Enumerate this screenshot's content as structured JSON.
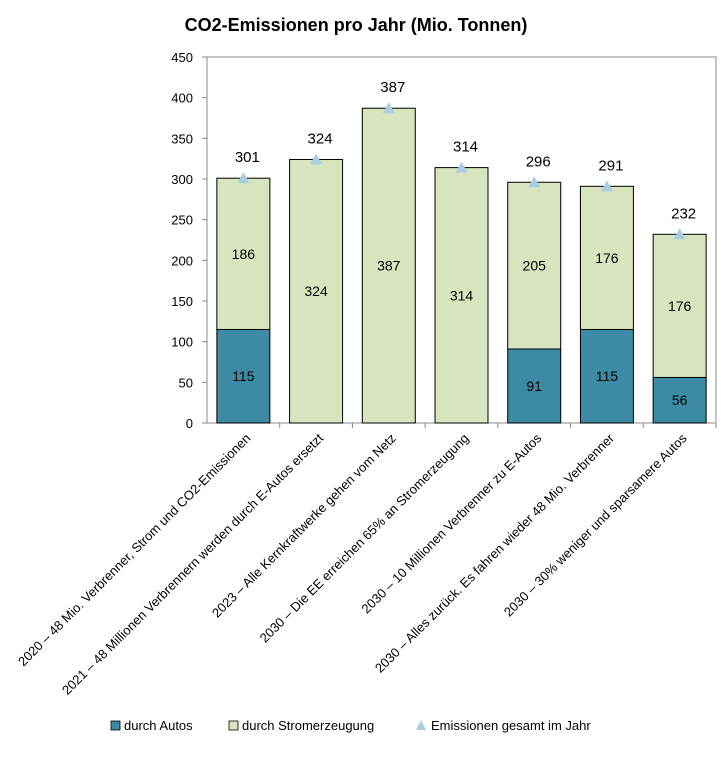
{
  "chart_data": {
    "type": "bar",
    "stacked": true,
    "title": "CO2-Emissionen pro Jahr (Mio. Tonnen)",
    "categories": [
      "2020 – 48 Mio. Verbrenner, Strom und CO2-Emissionen",
      "2021 – 48 Millionen Verbrennern werden durch E-Autos ersetzt",
      "2023 – Alle Kernkraftwerke gehen vom Netz",
      "2030 – Die EE erreichen 65% an Stromerzeugung",
      "2030 – 10 Millionen Verbrenner zu E-Autos",
      "2030 – Alles zurück. Es fahren wieder 48 Mio. Verbrenner",
      "2030 – 30% weniger und sparsamere Autos"
    ],
    "series": [
      {
        "name": "durch Autos",
        "color": "#3C8AA3",
        "values": [
          115,
          0,
          0,
          0,
          91,
          115,
          56
        ],
        "labels": [
          "115",
          null,
          null,
          null,
          "91",
          "115",
          "56"
        ]
      },
      {
        "name": "durch Stromerzeugung",
        "color": "#D7E4BD",
        "values": [
          186,
          324,
          387,
          314,
          205,
          176,
          176
        ],
        "labels": [
          "186",
          "324",
          "387",
          "314",
          "205",
          "176",
          "176"
        ]
      },
      {
        "name": "Emissionen  gesamt im Jahr",
        "type": "marker",
        "marker": "triangle",
        "color": "#A9CCE3",
        "values": [
          301,
          324,
          387,
          314,
          296,
          291,
          232
        ],
        "labels": [
          "301",
          "324",
          "387",
          "314",
          "296",
          "291",
          "232"
        ]
      }
    ],
    "ylim": [
      0,
      450
    ],
    "yticks": [
      0,
      50,
      100,
      150,
      200,
      250,
      300,
      350,
      400,
      450
    ],
    "grid": false,
    "legend_position": "bottom"
  }
}
